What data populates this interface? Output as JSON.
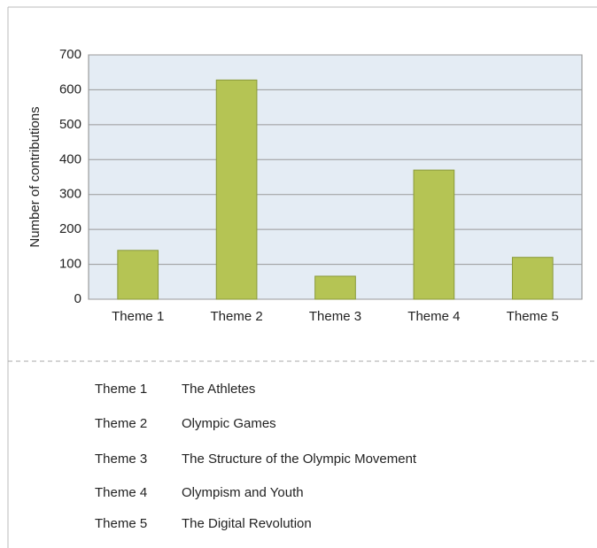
{
  "chart_data": {
    "type": "bar",
    "y_label": "Number of contributions",
    "categories": [
      "Theme 1",
      "Theme 2",
      "Theme 3",
      "Theme 4",
      "Theme 5"
    ],
    "values": [
      140,
      628,
      66,
      370,
      120
    ],
    "color": "#b5c454",
    "ylim": [
      0,
      700
    ],
    "yticks": [
      0,
      100,
      200,
      300,
      400,
      500,
      600,
      700
    ],
    "grid": true
  },
  "table": {
    "rows": [
      [
        "Theme 1",
        "The Athletes"
      ],
      [
        "Theme 2",
        "Olympic Games"
      ],
      [
        "Theme 3",
        "The Structure of the Olympic Movement"
      ],
      [
        "Theme 4",
        "Olympism and Youth"
      ],
      [
        "Theme 5",
        "The Digital Revolution"
      ]
    ]
  }
}
